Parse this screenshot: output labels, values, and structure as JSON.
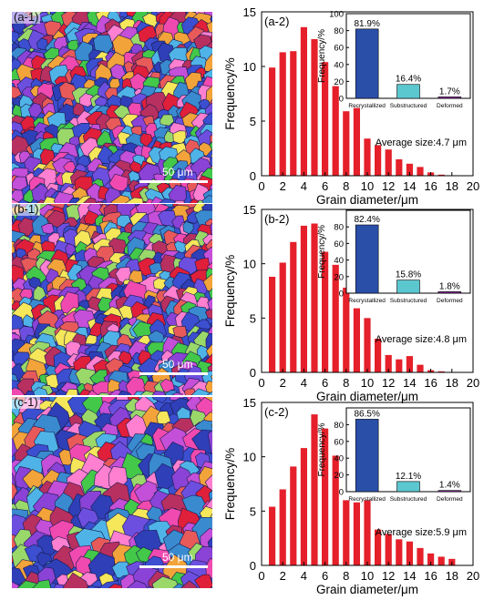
{
  "maps": [
    {
      "label": "(a-1)",
      "scale": "50 μm",
      "seed": 11
    },
    {
      "label": "(b-1)",
      "scale": "50 μm",
      "seed": 23
    },
    {
      "label": "(c-1)",
      "scale": "50 μm",
      "seed": 37
    }
  ],
  "colors": {
    "bar": "#e5202a",
    "recrystallized": "#2a4fa8",
    "substructured": "#5bc7cf",
    "deformed": "#8a2a9c"
  },
  "chart_data": [
    {
      "type": "bar",
      "panel_label": "(a-2)",
      "xlabel": "Grain diameter/μm",
      "ylabel": "Frequency/%",
      "xlim": [
        0,
        20
      ],
      "ylim": [
        0,
        15
      ],
      "x_ticks": [
        0,
        2,
        4,
        6,
        8,
        10,
        12,
        14,
        16,
        18,
        20
      ],
      "y_ticks": [
        0,
        5,
        10,
        15
      ],
      "x": [
        1,
        2,
        3,
        4,
        5,
        6,
        7,
        8,
        9,
        10,
        11,
        12,
        13,
        14,
        15,
        16,
        17
      ],
      "values": [
        9.9,
        11.3,
        11.4,
        13.6,
        12.5,
        10.4,
        8.2,
        5.9,
        6.2,
        3.4,
        2.8,
        2.4,
        1.5,
        1.1,
        0.8,
        0.3,
        0.1
      ],
      "annotation": "Average size:4.7 μm",
      "inset": {
        "type": "bar",
        "ylabel": "Frequency/%",
        "ylim": [
          0,
          100
        ],
        "y_ticks": [
          0,
          20,
          40,
          60,
          80,
          100
        ],
        "categories": [
          "Recrystallized",
          "Substructured",
          "Deformed"
        ],
        "values": [
          81.9,
          16.4,
          1.7
        ],
        "value_labels": [
          "81.9%",
          "16.4%",
          "1.7%"
        ]
      }
    },
    {
      "type": "bar",
      "panel_label": "(b-2)",
      "xlabel": "Grain diameter/μm",
      "ylabel": "Frequency/%",
      "xlim": [
        0,
        20
      ],
      "ylim": [
        0,
        15
      ],
      "x_ticks": [
        0,
        2,
        4,
        6,
        8,
        10,
        12,
        14,
        16,
        18,
        20
      ],
      "y_ticks": [
        0,
        5,
        10,
        15
      ],
      "x": [
        1,
        2,
        3,
        4,
        5,
        6,
        7,
        8,
        9,
        10,
        11,
        12,
        13,
        14,
        15,
        16,
        17
      ],
      "values": [
        8.8,
        10.1,
        12.0,
        13.5,
        13.7,
        11.1,
        9.9,
        7.8,
        5.9,
        5.0,
        3.1,
        1.6,
        1.2,
        1.5,
        0.7,
        0.2,
        0.1
      ],
      "annotation": "Average size:4.8 μm",
      "inset": {
        "type": "bar",
        "ylabel": "Frequency/%",
        "ylim": [
          0,
          100
        ],
        "y_ticks": [
          0,
          20,
          40,
          60,
          80
        ],
        "categories": [
          "Recrystallized",
          "Substructured",
          "Deformed"
        ],
        "values": [
          82.4,
          15.8,
          1.8
        ],
        "value_labels": [
          "82.4%",
          "15.8%",
          "1.8%"
        ]
      }
    },
    {
      "type": "bar",
      "panel_label": "(c-2)",
      "xlabel": "Grain diameter/μm",
      "ylabel": "Frequency/%",
      "xlim": [
        0,
        20
      ],
      "ylim": [
        0,
        15
      ],
      "x_ticks": [
        0,
        2,
        4,
        6,
        8,
        10,
        12,
        14,
        16,
        18,
        20
      ],
      "y_ticks": [
        0,
        5,
        10,
        15
      ],
      "x": [
        1,
        2,
        3,
        4,
        5,
        6,
        7,
        8,
        9,
        10,
        11,
        12,
        13,
        14,
        15,
        16,
        17,
        18
      ],
      "values": [
        5.4,
        7.0,
        9.1,
        10.8,
        13.9,
        12.6,
        10.1,
        6.0,
        5.8,
        6.0,
        3.3,
        2.9,
        2.4,
        2.2,
        1.6,
        1.1,
        0.8,
        0.6
      ],
      "annotation": "Average size:5.9 μm",
      "inset": {
        "type": "bar",
        "ylabel": "Frequency/%",
        "ylim": [
          0,
          100
        ],
        "y_ticks": [
          0,
          20,
          40,
          60,
          80
        ],
        "categories": [
          "Recrystallized",
          "Substructured",
          "Deformed"
        ],
        "values": [
          86.5,
          12.1,
          1.4
        ],
        "value_labels": [
          "86.5%",
          "12.1%",
          "1.4%"
        ]
      }
    }
  ]
}
